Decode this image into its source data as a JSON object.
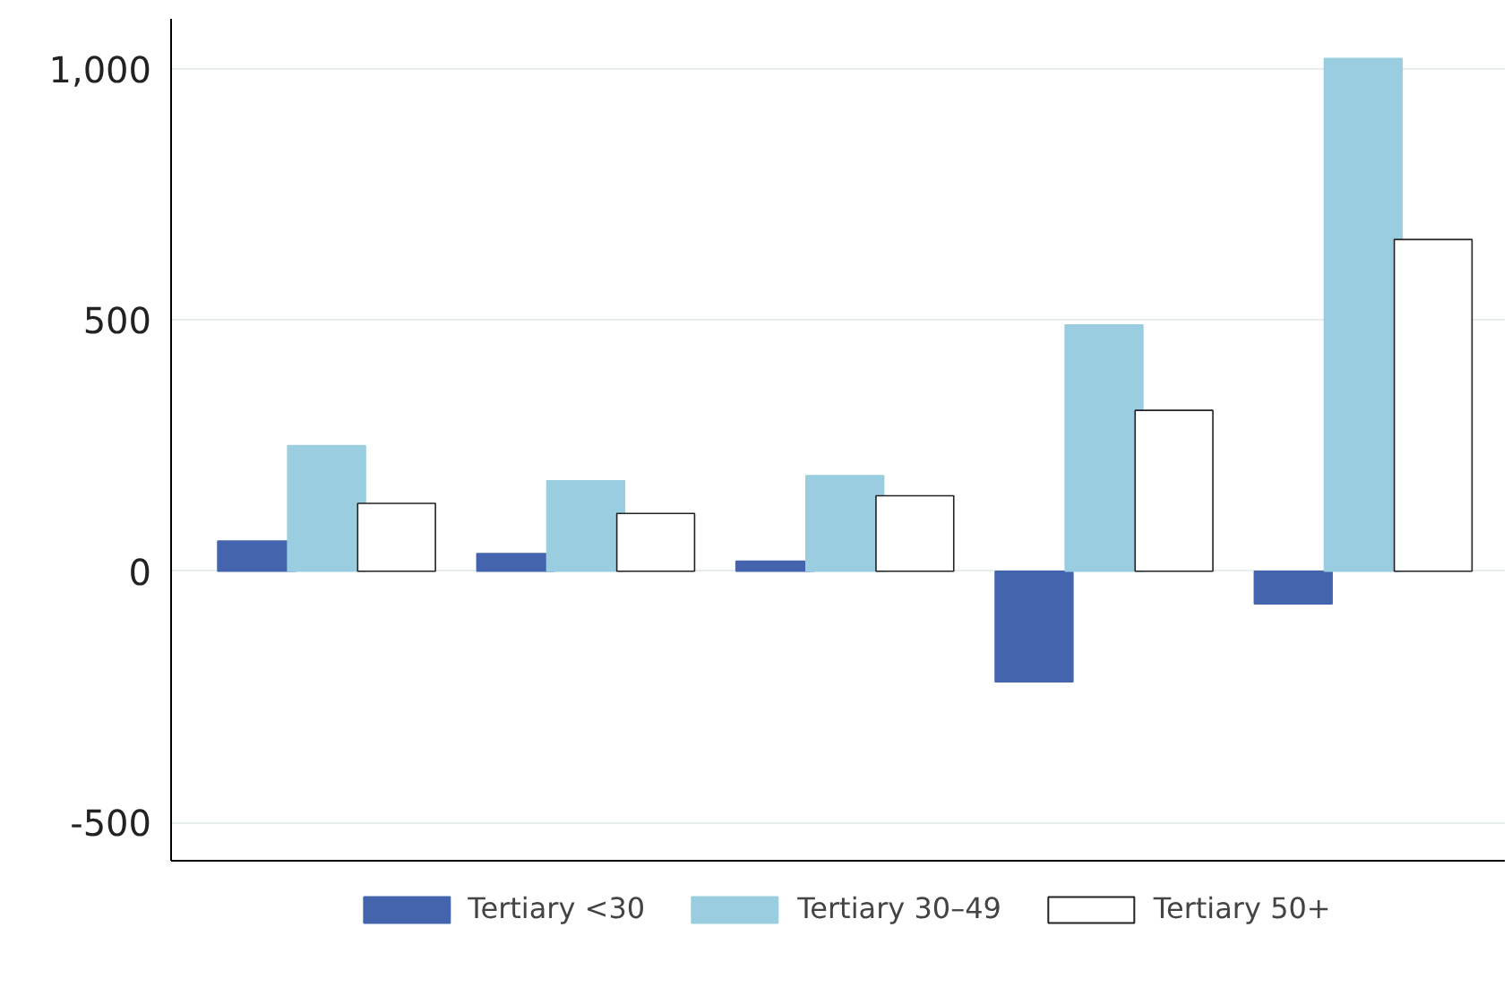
{
  "chart_data": {
    "type": "bar",
    "categories": [
      null,
      null,
      null,
      null,
      null
    ],
    "series": [
      {
        "name": "Tertiary <30",
        "color": "#4464ae",
        "values": [
          60,
          35,
          20,
          -220,
          -65
        ]
      },
      {
        "name": "Tertiary 30–49",
        "color": "#9acde0",
        "values": [
          250,
          180,
          190,
          490,
          1020
        ]
      },
      {
        "name": "Tertiary 50+",
        "color": "#ffffff",
        "values": [
          135,
          115,
          150,
          320,
          660
        ]
      }
    ],
    "ylim": [
      -576,
      1099
    ],
    "yticks": [
      {
        "value": -500,
        "label": "-500"
      },
      0,
      500,
      {
        "value": 1000,
        "label": "1,000"
      }
    ],
    "grid": "y",
    "legend": "bottom"
  }
}
